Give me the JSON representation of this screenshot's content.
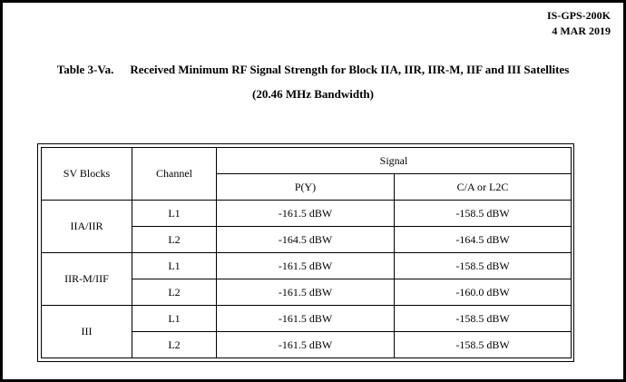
{
  "doc_header": {
    "doc_id": "IS-GPS-200K",
    "date": "4 MAR 2019"
  },
  "title": {
    "label": "Table 3-Va.",
    "text": "Received Minimum RF Signal Strength for Block IIA, IIR, IIR-M, IIF and III Satellites",
    "subtitle": "(20.46 MHz Bandwidth)"
  },
  "table": {
    "headers": {
      "sv_blocks": "SV Blocks",
      "channel": "Channel",
      "signal": "Signal",
      "py": "P(Y)",
      "ca": "C/A or L2C"
    },
    "groups": [
      {
        "block": "IIA/IIR",
        "rows": [
          {
            "channel": "L1",
            "py": "-161.5 dBW",
            "ca": "-158.5 dBW"
          },
          {
            "channel": "L2",
            "py": "-164.5 dBW",
            "ca": "-164.5 dBW"
          }
        ]
      },
      {
        "block": "IIR-M/IIF",
        "rows": [
          {
            "channel": "L1",
            "py": "-161.5 dBW",
            "ca": "-158.5 dBW"
          },
          {
            "channel": "L2",
            "py": "-161.5 dBW",
            "ca": "-160.0 dBW"
          }
        ]
      },
      {
        "block": "III",
        "rows": [
          {
            "channel": "L1",
            "py": "-161.5 dBW",
            "ca": "-158.5 dBW"
          },
          {
            "channel": "L2",
            "py": "-161.5 dBW",
            "ca": "-158.5 dBW"
          }
        ]
      }
    ]
  }
}
